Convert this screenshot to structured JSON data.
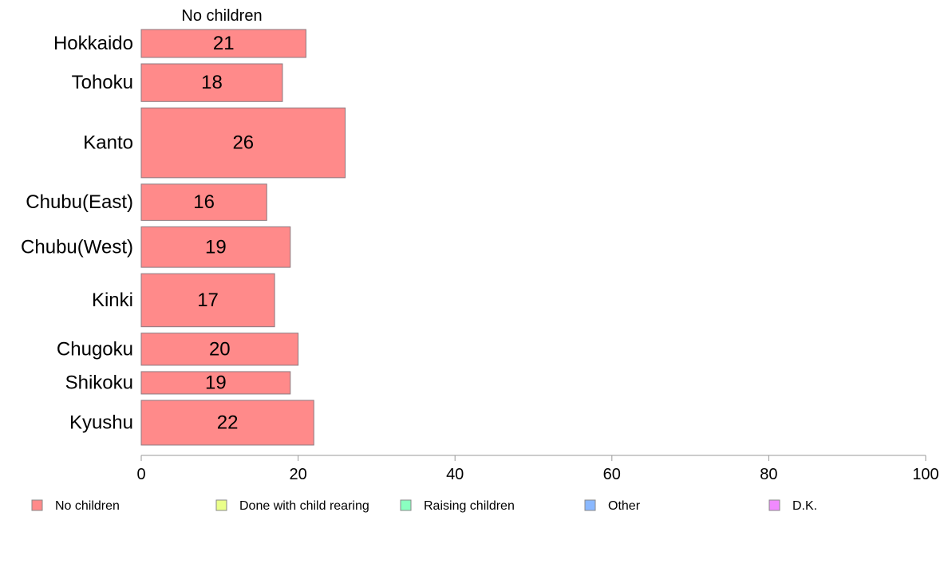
{
  "chart_data": {
    "type": "bar",
    "orientation": "horizontal",
    "column_title": "No children",
    "categories": [
      "Hokkaido",
      "Tohoku",
      "Kanto",
      "Chubu(East)",
      "Chubu(West)",
      "Kinki",
      "Chugoku",
      "Shikoku",
      "Kyushu"
    ],
    "series": [
      {
        "name": "No children",
        "values": [
          21,
          18,
          26,
          16,
          19,
          17,
          20,
          19,
          22
        ],
        "color": "#ff8a8a"
      }
    ],
    "bar_weights": [
      1.0,
      1.35,
      2.5,
      1.3,
      1.45,
      1.9,
      1.15,
      0.8,
      1.6
    ],
    "xlim": [
      0,
      100
    ],
    "xticks": [
      0,
      20,
      40,
      60,
      80,
      100
    ],
    "xlabel": "",
    "ylabel": "",
    "legend": {
      "placement": "bottom",
      "items": [
        {
          "label": "No children",
          "color": "#ff8a8a"
        },
        {
          "label": "Done with child rearing",
          "color": "#eaff8a"
        },
        {
          "label": "Raising children",
          "color": "#8affc0"
        },
        {
          "label": "Other",
          "color": "#8ab8ff"
        },
        {
          "label": "D.K.",
          "color": "#f08aff"
        }
      ]
    }
  }
}
